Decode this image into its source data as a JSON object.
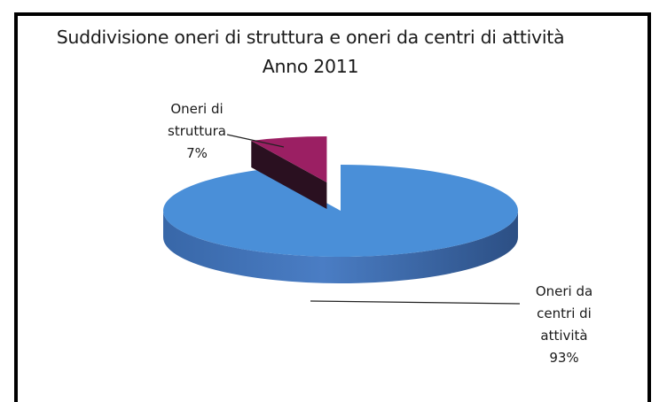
{
  "chart_data": {
    "type": "pie",
    "title": "Suddivisione oneri di struttura e oneri da centri di attività Anno 2011",
    "slices": [
      {
        "label": "Oneri di struttura",
        "value": 7,
        "value_label": "7%",
        "color": "#9B1F63",
        "label_lines": [
          "Oneri di",
          "struttura",
          "7%"
        ],
        "exploded": true
      },
      {
        "label": "Oneri da centri di attività",
        "value": 93,
        "value_label": "93%",
        "color": "#4A8FD8",
        "label_lines": [
          "Oneri da",
          "centri di",
          "attività",
          "93%"
        ],
        "exploded": false
      }
    ],
    "style": "3d-pie",
    "legend": "none"
  }
}
